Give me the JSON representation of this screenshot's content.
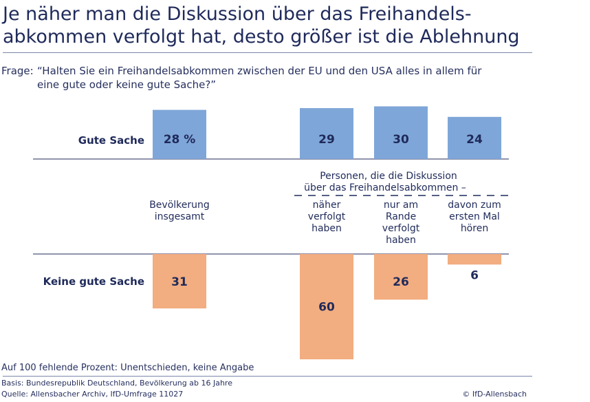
{
  "title_line1": "Je näher man die Diskussion über das Freihandels-",
  "title_line2": "abkommen verfolgt hat, desto größer ist die Ablehnung",
  "question_label": "Frage:",
  "question_line1": "“Halten Sie ein Freihandelsabkommen zwischen der EU und den USA alles in allem für",
  "question_line2": "eine gute oder keine gute Sache?”",
  "group_header_line1": "Personen, die die Diskussion",
  "group_header_line2": "über das Freihandelsabkommen –",
  "footnote": "Auf 100 fehlende Prozent: Unentschieden, keine Angabe",
  "basis": "Basis: Bundesrepublik Deutschland, Bevölkerung ab 16 Jahre",
  "source": "Quelle: Allensbacher Archiv, IfD-Umfrage 11027",
  "copyright": "© IfD-Allensbach",
  "colors": {
    "positive": "#7fa6d8",
    "negative": "#f2ad80",
    "text": "#1f2a5a"
  },
  "chart_data": {
    "type": "bar",
    "title": "Je näher man die Diskussion über das Freihandelsabkommen verfolgt hat, desto größer ist die Ablehnung",
    "categories": [
      [
        "Bevölkerung",
        "insgesamt"
      ],
      [
        "näher",
        "verfolgt",
        "haben"
      ],
      [
        "nur am",
        "Rande",
        "verfolgt",
        "haben"
      ],
      [
        "davon zum",
        "ersten Mal",
        "hören"
      ]
    ],
    "series": [
      {
        "name": "Gute Sache",
        "values": [
          28,
          29,
          30,
          24
        ],
        "labels": [
          "28 %",
          "29",
          "30",
          "24"
        ]
      },
      {
        "name": "Keine gute Sache",
        "values": [
          31,
          60,
          26,
          6
        ],
        "labels": [
          "31",
          "60",
          "26",
          "6"
        ]
      }
    ],
    "unit": "%",
    "ylim": [
      0,
      60
    ]
  }
}
